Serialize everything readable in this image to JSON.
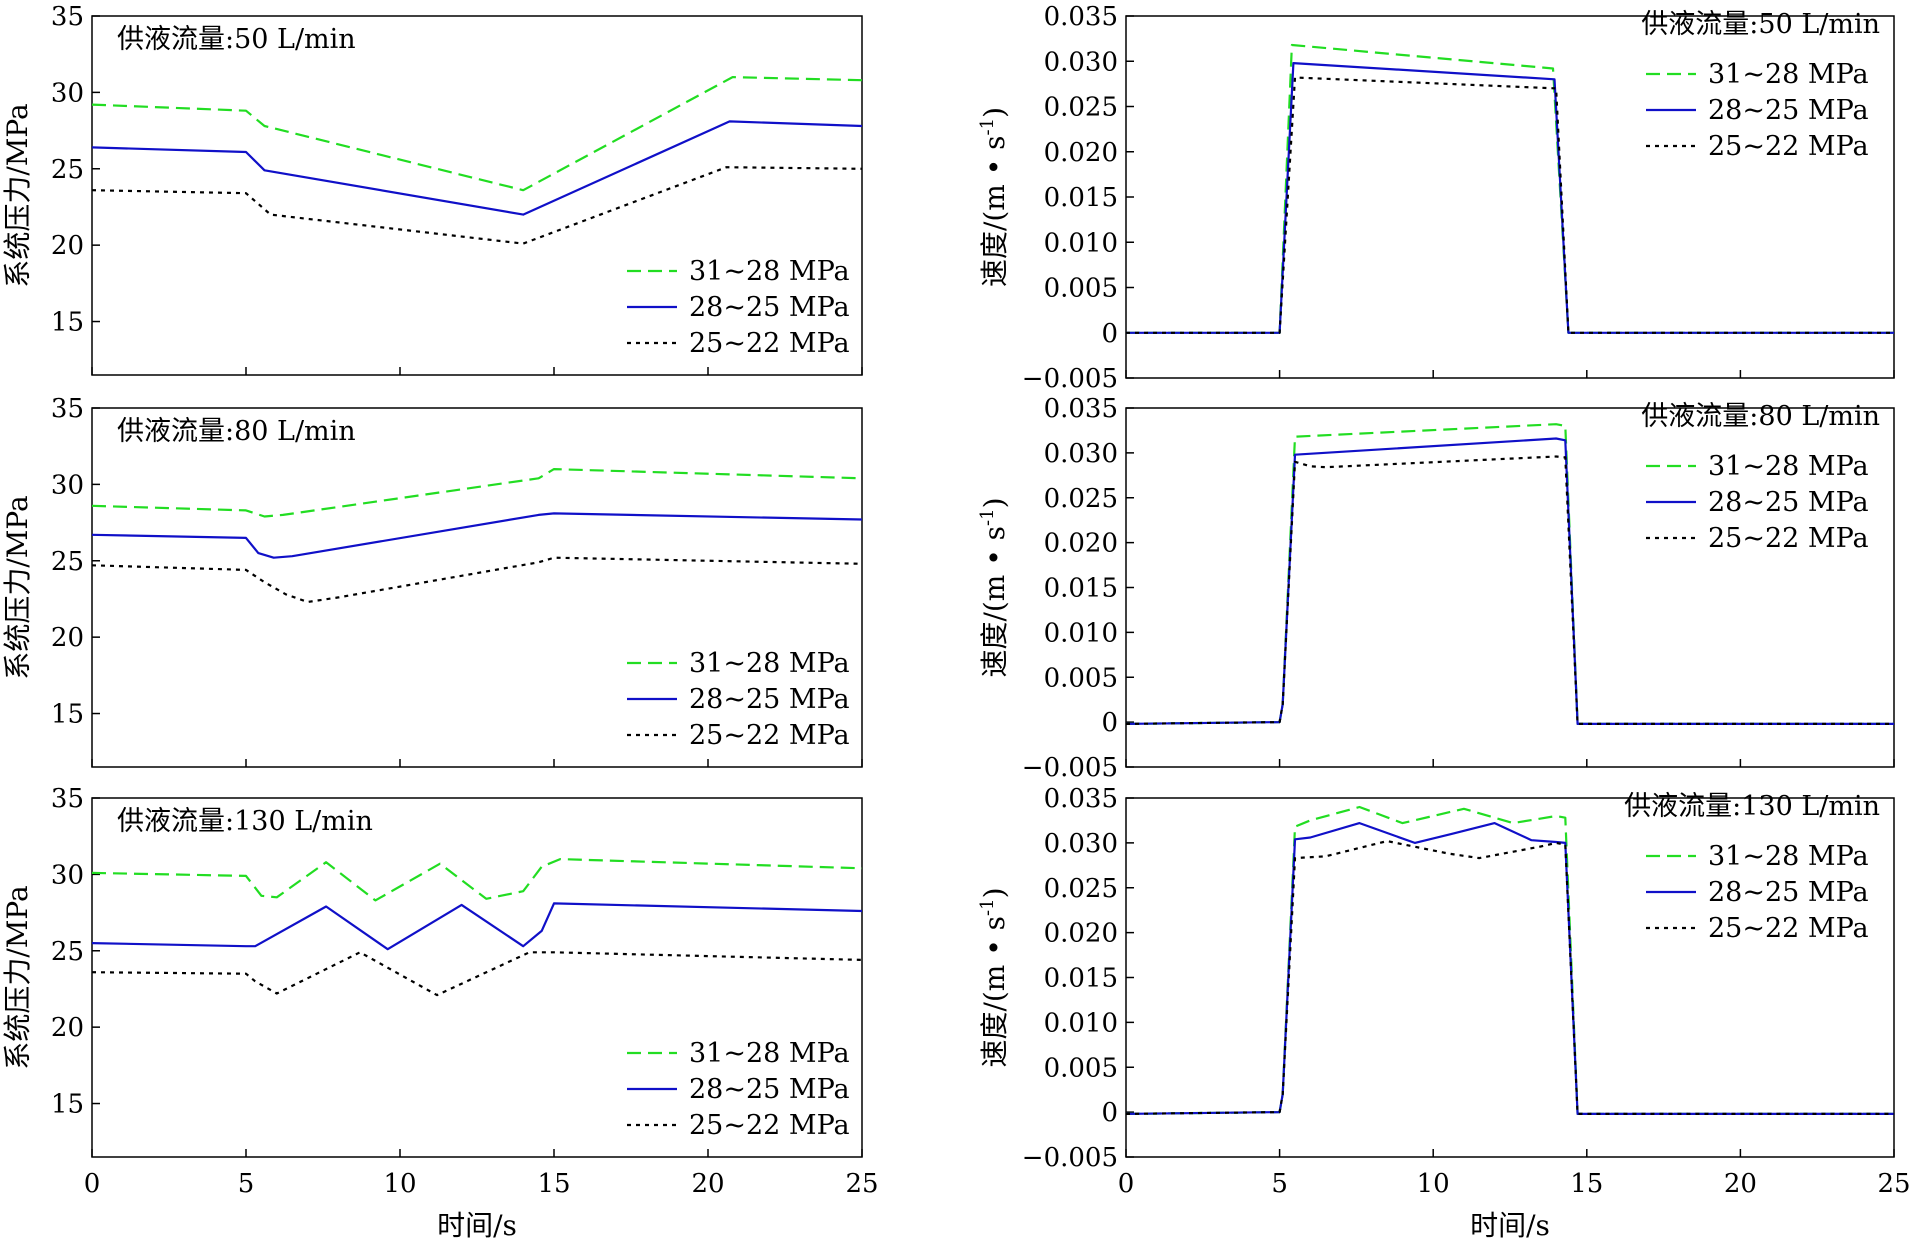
{
  "colors": {
    "series_1": "#22dd22",
    "series_2": "#1010c8",
    "series_3": "#000000"
  },
  "shared": {
    "xlabel": "时间/s",
    "pressure_ylabel": "系统压力/MPa",
    "velocity_ylabel_main": "速度/(m • s",
    "velocity_ylabel_sup": "-1",
    "velocity_ylabel_close": ")"
  },
  "chart_data": [
    {
      "id": "pressure-50",
      "type": "line",
      "title": "供液流量:50 L/min",
      "xlabel": "",
      "ylabel": "系统压力/MPa",
      "xlim": [
        0,
        25
      ],
      "ylim": [
        11.5,
        35
      ],
      "xticks": [
        0,
        5,
        10,
        15,
        20,
        25
      ],
      "xtick_labels_visible": false,
      "yticks": [
        15,
        20,
        25,
        30,
        35
      ],
      "ytick_labels": [
        "15",
        "20",
        "25",
        "30",
        "35"
      ],
      "legend_position": "bottom-right",
      "series": [
        {
          "name": "31~28 MPa",
          "style": "dashed",
          "x": [
            0,
            5,
            5.6,
            14,
            20.8,
            25
          ],
          "y": [
            29.2,
            28.8,
            27.8,
            23.6,
            31.0,
            30.8
          ]
        },
        {
          "name": "28~25 MPa",
          "style": "solid",
          "x": [
            0,
            5,
            5.6,
            14,
            20.7,
            25
          ],
          "y": [
            26.4,
            26.1,
            24.9,
            22.0,
            28.1,
            27.8
          ]
        },
        {
          "name": "25~22 MPa",
          "style": "dotted",
          "x": [
            0,
            5,
            5.8,
            14,
            20.6,
            25
          ],
          "y": [
            23.6,
            23.4,
            22.0,
            20.1,
            25.1,
            25.0
          ]
        }
      ]
    },
    {
      "id": "velocity-50",
      "type": "line",
      "title": "供液流量:50 L/min",
      "xlabel": "",
      "ylabel": "速度/(m • s-1)",
      "xlim": [
        0,
        25
      ],
      "ylim": [
        -0.005,
        0.035
      ],
      "xticks": [
        0,
        5,
        10,
        15,
        20,
        25
      ],
      "xtick_labels_visible": false,
      "yticks": [
        -0.005,
        0,
        0.005,
        0.01,
        0.015,
        0.02,
        0.025,
        0.03,
        0.035
      ],
      "ytick_labels": [
        "−0.005",
        "0",
        "0.005",
        "0.010",
        "0.015",
        "0.020",
        "0.025",
        "0.030",
        "0.035"
      ],
      "legend_position": "top-right",
      "series": [
        {
          "name": "31~28 MPa",
          "style": "dashed",
          "x": [
            0,
            5,
            5.4,
            13.9,
            14.4,
            25
          ],
          "y": [
            0,
            0,
            0.0318,
            0.0292,
            0,
            0
          ]
        },
        {
          "name": "28~25 MPa",
          "style": "solid",
          "x": [
            0,
            5,
            5.45,
            13.95,
            14.4,
            25
          ],
          "y": [
            0,
            0,
            0.0298,
            0.028,
            0,
            0
          ]
        },
        {
          "name": "25~22 MPa",
          "style": "dotted",
          "x": [
            0,
            5,
            5.5,
            14.0,
            14.4,
            25
          ],
          "y": [
            0,
            0,
            0.0282,
            0.027,
            0,
            0
          ]
        }
      ]
    },
    {
      "id": "pressure-80",
      "type": "line",
      "title": "供液流量:80 L/min",
      "xlabel": "",
      "ylabel": "系统压力/MPa",
      "xlim": [
        0,
        25
      ],
      "ylim": [
        11.5,
        35
      ],
      "xticks": [
        0,
        5,
        10,
        15,
        20,
        25
      ],
      "xtick_labels_visible": false,
      "yticks": [
        15,
        20,
        25,
        30,
        35
      ],
      "ytick_labels": [
        "15",
        "20",
        "25",
        "30",
        "35"
      ],
      "legend_position": "bottom-right",
      "series": [
        {
          "name": "31~28 MPa",
          "style": "dashed",
          "x": [
            0,
            5,
            5.6,
            6.2,
            14.5,
            15.0,
            25
          ],
          "y": [
            28.6,
            28.3,
            27.9,
            28.0,
            30.4,
            31.0,
            30.4
          ]
        },
        {
          "name": "28~25 MPa",
          "style": "solid",
          "x": [
            0,
            5,
            5.4,
            5.9,
            6.5,
            14.5,
            15.0,
            25
          ],
          "y": [
            26.7,
            26.5,
            25.5,
            25.2,
            25.3,
            28.0,
            28.1,
            27.7
          ]
        },
        {
          "name": "25~22 MPa",
          "style": "dotted",
          "x": [
            0,
            5,
            5.6,
            6.3,
            7.0,
            8.0,
            14.5,
            15.0,
            25
          ],
          "y": [
            24.7,
            24.4,
            23.6,
            22.8,
            22.3,
            22.6,
            24.9,
            25.2,
            24.8
          ]
        }
      ]
    },
    {
      "id": "velocity-80",
      "type": "line",
      "title": "供液流量:80 L/min",
      "xlabel": "",
      "ylabel": "速度/(m • s-1)",
      "xlim": [
        0,
        25
      ],
      "ylim": [
        -0.005,
        0.035
      ],
      "xticks": [
        0,
        5,
        10,
        15,
        20,
        25
      ],
      "xtick_labels_visible": false,
      "yticks": [
        -0.005,
        0,
        0.005,
        0.01,
        0.015,
        0.02,
        0.025,
        0.03,
        0.035
      ],
      "ytick_labels": [
        "−0.005",
        "0",
        "0.005",
        "0.010",
        "0.015",
        "0.020",
        "0.025",
        "0.030",
        "0.035"
      ],
      "legend_position": "top-right",
      "series": [
        {
          "name": "31~28 MPa",
          "style": "dashed",
          "x": [
            0,
            5,
            5.1,
            5.5,
            14.0,
            14.3,
            14.7,
            25
          ],
          "y": [
            -0.0002,
            0,
            0.002,
            0.0318,
            0.0332,
            0.033,
            -0.0002,
            -0.0002
          ]
        },
        {
          "name": "28~25 MPa",
          "style": "solid",
          "x": [
            0,
            5,
            5.1,
            5.5,
            14.0,
            14.3,
            14.7,
            25
          ],
          "y": [
            -0.0002,
            0,
            0.002,
            0.0298,
            0.0316,
            0.0314,
            -0.0002,
            -0.0002
          ]
        },
        {
          "name": "25~22 MPa",
          "style": "dotted",
          "x": [
            0,
            5,
            5.1,
            5.5,
            6.0,
            6.5,
            14.0,
            14.3,
            14.7,
            25
          ],
          "y": [
            -0.0002,
            0,
            0.002,
            0.029,
            0.0285,
            0.0284,
            0.0296,
            0.0295,
            -0.0002,
            -0.0002
          ]
        }
      ]
    },
    {
      "id": "pressure-130",
      "type": "line",
      "title": "供液流量:130 L/min",
      "xlabel": "时间/s",
      "ylabel": "系统压力/MPa",
      "xlim": [
        0,
        25
      ],
      "ylim": [
        11.5,
        35
      ],
      "xticks": [
        0,
        5,
        10,
        15,
        20,
        25
      ],
      "xtick_labels": [
        "0",
        "5",
        "10",
        "15",
        "20",
        "25"
      ],
      "xtick_labels_visible": true,
      "yticks": [
        15,
        20,
        25,
        30,
        35
      ],
      "ytick_labels": [
        "15",
        "20",
        "25",
        "30",
        "35"
      ],
      "legend_position": "bottom-right",
      "series": [
        {
          "name": "31~28 MPa",
          "style": "dashed",
          "x": [
            0,
            5,
            5.5,
            6.0,
            7.6,
            9.2,
            11.3,
            12.8,
            14.0,
            14.6,
            15.2,
            25
          ],
          "y": [
            30.1,
            29.9,
            28.6,
            28.5,
            30.8,
            28.3,
            30.7,
            28.4,
            28.9,
            30.5,
            31.0,
            30.4
          ]
        },
        {
          "name": "28~25 MPa",
          "style": "solid",
          "x": [
            0,
            5,
            5.3,
            7.6,
            9.6,
            12.0,
            14.0,
            14.6,
            15.0,
            25
          ],
          "y": [
            25.5,
            25.3,
            25.3,
            27.9,
            25.1,
            28.0,
            25.3,
            26.3,
            28.1,
            27.6
          ]
        },
        {
          "name": "25~22 MPa",
          "style": "dotted",
          "x": [
            0,
            5,
            5.3,
            6.0,
            8.7,
            11.2,
            14.2,
            15.0,
            25
          ],
          "y": [
            23.6,
            23.5,
            23.0,
            22.2,
            24.9,
            22.1,
            24.9,
            24.9,
            24.4
          ]
        }
      ]
    },
    {
      "id": "velocity-130",
      "type": "line",
      "title": "供液流量:130 L/min",
      "xlabel": "时间/s",
      "ylabel": "速度/(m • s-1)",
      "xlim": [
        0,
        25
      ],
      "ylim": [
        -0.005,
        0.035
      ],
      "xticks": [
        0,
        5,
        10,
        15,
        20,
        25
      ],
      "xtick_labels": [
        "0",
        "5",
        "10",
        "15",
        "20",
        "25"
      ],
      "xtick_labels_visible": true,
      "yticks": [
        -0.005,
        0,
        0.005,
        0.01,
        0.015,
        0.02,
        0.025,
        0.03,
        0.035
      ],
      "ytick_labels": [
        "−0.005",
        "0",
        "0.005",
        "0.010",
        "0.015",
        "0.020",
        "0.025",
        "0.030",
        "0.035"
      ],
      "legend_position": "top-right",
      "series": [
        {
          "name": "31~28 MPa",
          "style": "dashed",
          "x": [
            0,
            5,
            5.1,
            5.5,
            6.0,
            7.6,
            9.0,
            11.0,
            12.6,
            14.0,
            14.3,
            14.7,
            25
          ],
          "y": [
            -0.0002,
            0,
            0.002,
            0.0318,
            0.0325,
            0.034,
            0.0322,
            0.0338,
            0.0322,
            0.033,
            0.0328,
            -0.0002,
            -0.0002
          ]
        },
        {
          "name": "28~25 MPa",
          "style": "solid",
          "x": [
            0,
            5,
            5.1,
            5.5,
            6.0,
            7.6,
            9.4,
            10.6,
            12.0,
            13.2,
            14.0,
            14.3,
            14.7,
            25
          ],
          "y": [
            -0.0002,
            0,
            0.002,
            0.0304,
            0.0306,
            0.0322,
            0.03,
            0.031,
            0.0322,
            0.0303,
            0.0301,
            0.03,
            -0.0002,
            -0.0002
          ]
        },
        {
          "name": "25~22 MPa",
          "style": "dotted",
          "x": [
            0,
            5,
            5.1,
            5.5,
            6.5,
            8.5,
            10.5,
            11.5,
            13.5,
            14.0,
            14.3,
            14.7,
            25
          ],
          "y": [
            -0.0002,
            0,
            0.002,
            0.0283,
            0.0285,
            0.0302,
            0.0288,
            0.0283,
            0.0296,
            0.03,
            0.0298,
            -0.0002,
            -0.0002
          ]
        }
      ]
    }
  ]
}
